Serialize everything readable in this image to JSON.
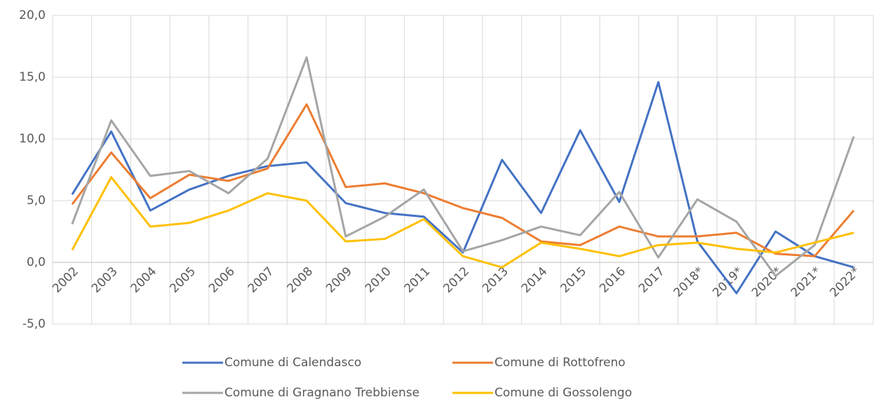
{
  "chart_data": {
    "type": "line",
    "categories": [
      "2002",
      "2003",
      "2004",
      "2005",
      "2006",
      "2007",
      "2008",
      "2009",
      "2010",
      "2011",
      "2012",
      "2013",
      "2014",
      "2015",
      "2016",
      "2017",
      "2018*",
      "2019*",
      "2020*",
      "2021*",
      "2022*"
    ],
    "series": [
      {
        "name": "Comune di Calendasco",
        "color": "#4472c4",
        "values": [
          5.5,
          10.6,
          4.2,
          5.9,
          7.0,
          7.8,
          8.1,
          4.8,
          4.0,
          3.7,
          0.8,
          8.3,
          4.0,
          10.7,
          4.9,
          14.6,
          1.7,
          -2.5,
          2.5,
          0.5,
          -0.4
        ]
      },
      {
        "name": "Comune di Rottofreno",
        "color": "#ed7d31",
        "values": [
          4.7,
          8.9,
          5.2,
          7.1,
          6.6,
          7.6,
          12.8,
          6.1,
          6.4,
          5.6,
          4.4,
          3.6,
          1.7,
          1.4,
          2.9,
          2.1,
          2.1,
          2.4,
          0.7,
          0.5,
          4.2
        ]
      },
      {
        "name": "Comune di Gragnano Trebbiense",
        "color": "#a5a5a5",
        "values": [
          3.1,
          11.5,
          7.0,
          7.4,
          5.6,
          8.4,
          16.6,
          2.1,
          3.7,
          5.9,
          0.9,
          1.8,
          2.9,
          2.2,
          5.7,
          0.4,
          5.1,
          3.3,
          -1.1,
          1.4,
          10.2
        ]
      },
      {
        "name": "Comune di Gossolengo",
        "color": "#ffc000",
        "values": [
          1.0,
          6.9,
          2.9,
          3.2,
          4.2,
          5.6,
          5.0,
          1.7,
          1.9,
          3.5,
          0.5,
          -0.4,
          1.6,
          1.1,
          0.5,
          1.4,
          1.6,
          1.1,
          0.8,
          1.6,
          2.4
        ]
      }
    ],
    "ylim": [
      -5,
      20
    ],
    "yticks": [
      {
        "value": -5,
        "label": "-5,0"
      },
      {
        "value": 0,
        "label": "0,0"
      },
      {
        "value": 5,
        "label": "5,0"
      },
      {
        "value": 10,
        "label": "10,0"
      },
      {
        "value": 15,
        "label": "15,0"
      },
      {
        "value": 20,
        "label": "20,0"
      }
    ],
    "grid": true,
    "legend": "bottom"
  }
}
